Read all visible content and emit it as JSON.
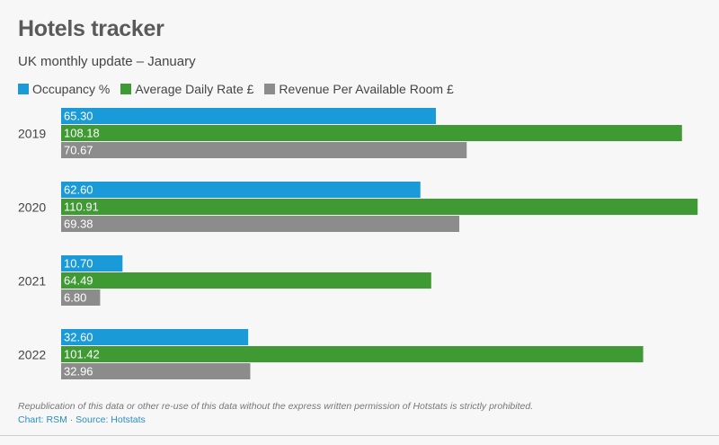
{
  "header": {
    "title": "Hotels tracker",
    "subtitle": "UK monthly update – January"
  },
  "footer": {
    "note": "Republication of this data or other re-use of this data without the express written permission of Hotstats is strictly prohibited.",
    "credit": "Chart: RSM · Source: Hotstats"
  },
  "chart_data": {
    "type": "bar",
    "orientation": "horizontal",
    "title": "Hotels tracker",
    "subtitle": "UK monthly update – January",
    "categories": [
      "2019",
      "2020",
      "2021",
      "2022"
    ],
    "series": [
      {
        "name": "Occupancy %",
        "color": "#1a9ad6",
        "values": [
          65.3,
          62.6,
          10.7,
          32.6
        ]
      },
      {
        "name": "Average Daily Rate £",
        "color": "#3f9a34",
        "values": [
          108.18,
          110.91,
          64.49,
          101.42
        ]
      },
      {
        "name": "Revenue Per Available Room £",
        "color": "#8c8c8c",
        "values": [
          70.67,
          69.38,
          6.8,
          32.96
        ]
      }
    ],
    "xlim": [
      0,
      111.5
    ],
    "grid": false,
    "legend": "top-left",
    "data_labels": true
  }
}
